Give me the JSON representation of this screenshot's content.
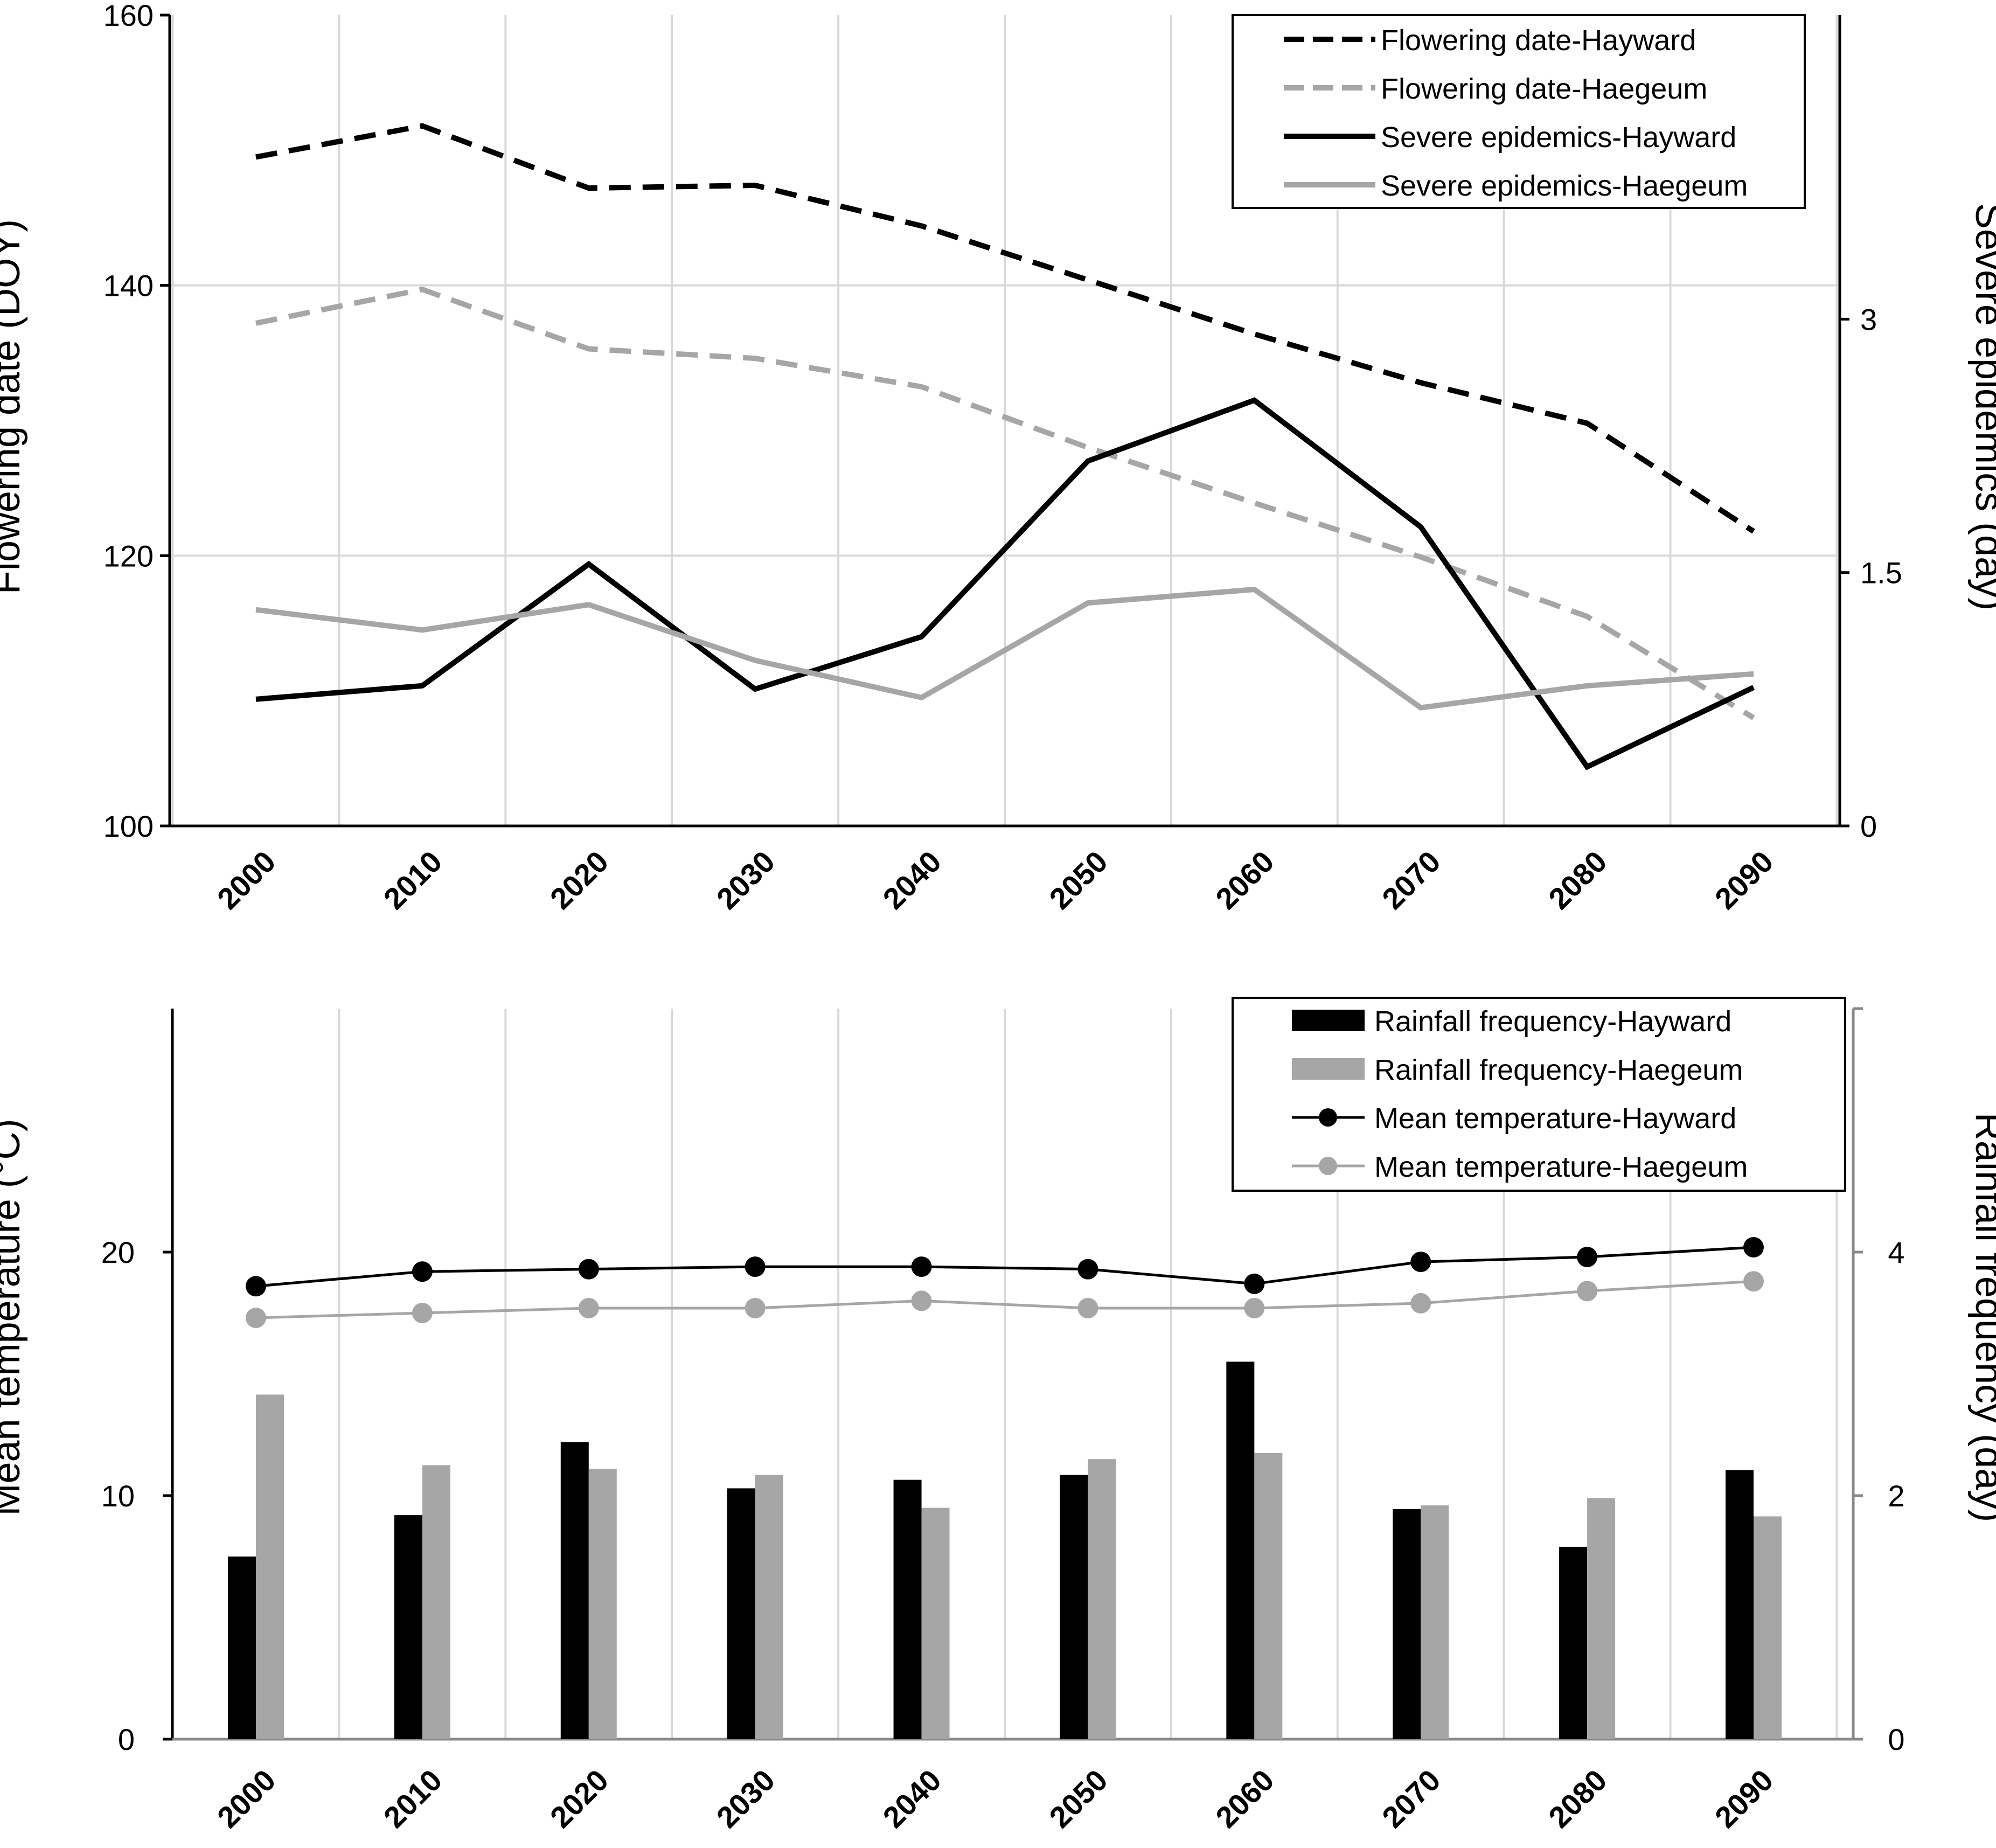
{
  "chart_data": [
    {
      "type": "line",
      "x": [
        2000,
        2010,
        2020,
        2030,
        2040,
        2050,
        2060,
        2070,
        2080,
        2090
      ],
      "xlabel": "",
      "ylabel": "Flowering date (DOY)",
      "ylabel_right": "Severe epidemics (day)",
      "ylim": [
        100,
        160
      ],
      "ylim_right": [
        0,
        4.8
      ],
      "yticks": [
        "100",
        "120",
        "140",
        "160"
      ],
      "yticks_right": [
        "0",
        "1.5",
        "3"
      ],
      "grid": true,
      "legend_position": "top-right",
      "series": [
        {
          "name": "Flowering date-Hayward",
          "axis": "left",
          "style": "dashed",
          "color": "#000000",
          "values": [
            149.5,
            151.8,
            147.2,
            147.4,
            144.4,
            140.4,
            136.4,
            132.8,
            129.8,
            121.8
          ]
        },
        {
          "name": "Flowering date-Haegeum",
          "axis": "left",
          "style": "dashed",
          "color": "#a6a6a6",
          "values": [
            137.2,
            139.7,
            135.3,
            134.6,
            132.5,
            128.0,
            123.9,
            119.9,
            115.5,
            108.0
          ]
        },
        {
          "name": "Severe epidemics-Hayward",
          "axis": "right",
          "style": "solid",
          "color": "#000000",
          "values": [
            0.75,
            0.83,
            1.55,
            0.81,
            1.12,
            2.16,
            2.52,
            1.77,
            0.35,
            0.82
          ]
        },
        {
          "name": "Severe epidemics-Haegeum",
          "axis": "right",
          "style": "solid",
          "color": "#a6a6a6",
          "values": [
            1.28,
            1.16,
            1.31,
            0.98,
            0.76,
            1.32,
            1.4,
            0.7,
            0.83,
            0.9
          ]
        }
      ]
    },
    {
      "type": "bar",
      "categories": [
        "2000",
        "2010",
        "2020",
        "2030",
        "2040",
        "2050",
        "2060",
        "2070",
        "2080",
        "2090"
      ],
      "xlabel": "",
      "ylabel": "Mean temperature (°C)",
      "ylabel_right": "Rainfall frequency (day)",
      "ylim": [
        0,
        30
      ],
      "ylim_right": [
        0,
        6
      ],
      "yticks": [
        "0",
        "10",
        "20"
      ],
      "yticks_right": [
        "0",
        "2",
        "4"
      ],
      "grid": true,
      "legend_position": "top-right",
      "series": [
        {
          "name": "Rainfall frequency-Hayward",
          "kind": "bar",
          "axis": "right",
          "color": "#000000",
          "values": [
            1.5,
            1.84,
            2.44,
            2.06,
            2.13,
            2.17,
            3.1,
            1.89,
            1.58,
            2.21
          ]
        },
        {
          "name": "Rainfall frequency-Haegeum",
          "kind": "bar",
          "axis": "right",
          "color": "#a6a6a6",
          "values": [
            2.83,
            2.25,
            2.22,
            2.17,
            1.9,
            2.3,
            2.35,
            1.92,
            1.98,
            1.83
          ]
        },
        {
          "name": "Mean temperature-Hayward",
          "kind": "line",
          "axis": "left",
          "color": "#000000",
          "values": [
            18.6,
            19.2,
            19.3,
            19.4,
            19.4,
            19.3,
            18.7,
            19.6,
            19.8,
            20.2
          ]
        },
        {
          "name": "Mean temperature-Haegeum",
          "kind": "line",
          "axis": "left",
          "color": "#a6a6a6",
          "values": [
            17.3,
            17.5,
            17.7,
            17.7,
            18.0,
            17.7,
            17.7,
            17.9,
            18.4,
            18.8
          ]
        }
      ]
    }
  ]
}
